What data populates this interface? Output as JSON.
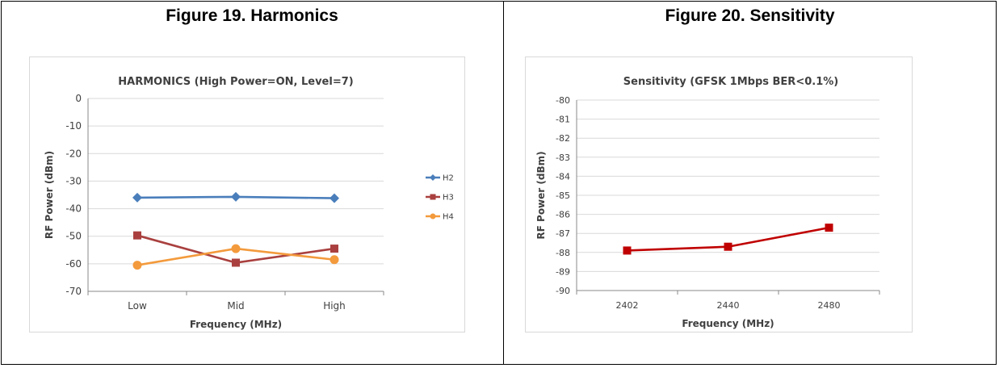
{
  "figures": [
    {
      "caption": "Figure 19. Harmonics"
    },
    {
      "caption": "Figure 20. Sensitivity"
    }
  ],
  "colors": {
    "H2": "#4a7ebb",
    "H3": "#a9403f",
    "H4": "#f39a3c",
    "sensitivity": "#c00000",
    "grid": "#d9d9d9",
    "axis": "#888888"
  },
  "chart_data": [
    {
      "type": "line",
      "title": "HARMONICS (High Power=ON, Level=7)",
      "xlabel": "Frequency (MHz)",
      "ylabel": "RF Power (dBm)",
      "categories": [
        "Low",
        "Mid",
        "High"
      ],
      "ylim": [
        -70,
        0
      ],
      "yticks": [
        0,
        -10,
        -20,
        -30,
        -40,
        -50,
        -60,
        -70
      ],
      "grid": true,
      "legend": "right",
      "series": [
        {
          "name": "H2",
          "marker": "diamond",
          "values": [
            -36,
            -35.7,
            -36.2
          ]
        },
        {
          "name": "H3",
          "marker": "square",
          "values": [
            -49.7,
            -59.6,
            -54.5
          ]
        },
        {
          "name": "H4",
          "marker": "circle",
          "values": [
            -60.5,
            -54.5,
            -58.5
          ]
        }
      ]
    },
    {
      "type": "line",
      "title": "Sensitivity (GFSK 1Mbps BER<0.1%)",
      "xlabel": "Frequency (MHz)",
      "ylabel": "RF Power (dBm)",
      "categories": [
        "2402",
        "2440",
        "2480"
      ],
      "ylim": [
        -90,
        -80
      ],
      "yticks": [
        -80,
        -81,
        -82,
        -83,
        -84,
        -85,
        -86,
        -87,
        -88,
        -89,
        -90
      ],
      "grid": true,
      "legend": "none",
      "series": [
        {
          "marker": "square",
          "values": [
            -87.9,
            -87.7,
            -86.7
          ]
        }
      ]
    }
  ]
}
